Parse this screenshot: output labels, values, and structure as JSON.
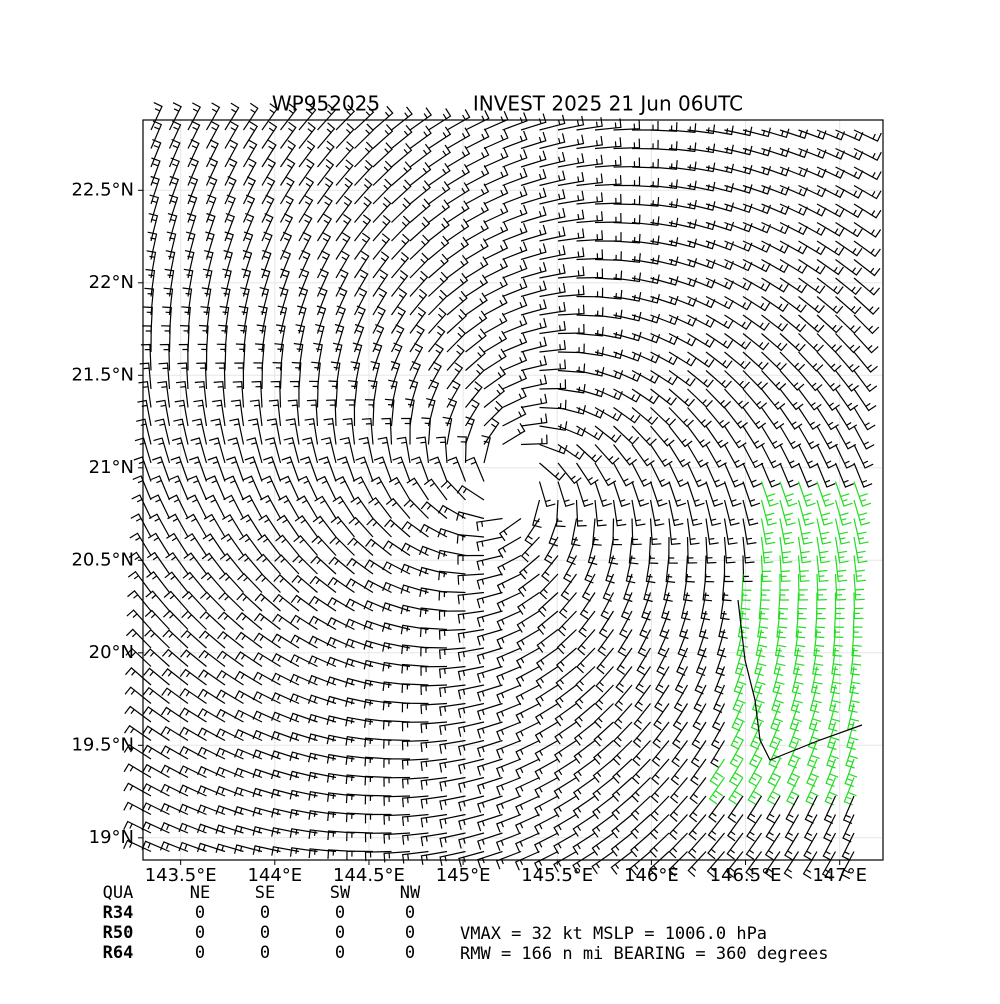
{
  "chart_data": {
    "type": "barbs",
    "title_left": "WP952025",
    "title_right": "INVEST 2025 21 Jun 06UTC",
    "xlim": [
      143.3,
      147.23
    ],
    "ylim": [
      18.88,
      22.88
    ],
    "xticks": [
      {
        "value": 143.5,
        "label": "143.5°E"
      },
      {
        "value": 144,
        "label": "144°E"
      },
      {
        "value": 144.5,
        "label": "144.5°E"
      },
      {
        "value": 145,
        "label": "145°E"
      },
      {
        "value": 145.5,
        "label": "145.5°E"
      },
      {
        "value": 146,
        "label": "146°E"
      },
      {
        "value": 146.5,
        "label": "146.5°E"
      },
      {
        "value": 147,
        "label": "147°E"
      }
    ],
    "yticks": [
      {
        "value": 19,
        "label": "19°N"
      },
      {
        "value": 19.5,
        "label": "19.5°N"
      },
      {
        "value": 20,
        "label": "20°N"
      },
      {
        "value": 20.5,
        "label": "20.5°N"
      },
      {
        "value": 21,
        "label": "21°N"
      },
      {
        "value": 21.5,
        "label": "21.5°N"
      },
      {
        "value": 22,
        "label": "22°N"
      },
      {
        "value": 22.5,
        "label": "22.5°N"
      }
    ],
    "grid": true
  },
  "table": {
    "header": [
      "QUA",
      "NE",
      "SE",
      "SW",
      "NW"
    ],
    "rows": [
      [
        "R34",
        "0",
        "0",
        "0",
        "0"
      ],
      [
        "R50",
        "0",
        "0",
        "0",
        "0"
      ],
      [
        "R64",
        "0",
        "0",
        "0",
        "0"
      ]
    ]
  },
  "summary": [
    "VMAX =  32 kt MSLP = 1006.0 hPa",
    "RMW = 166 n mi BEARING = 360 degrees"
  ]
}
